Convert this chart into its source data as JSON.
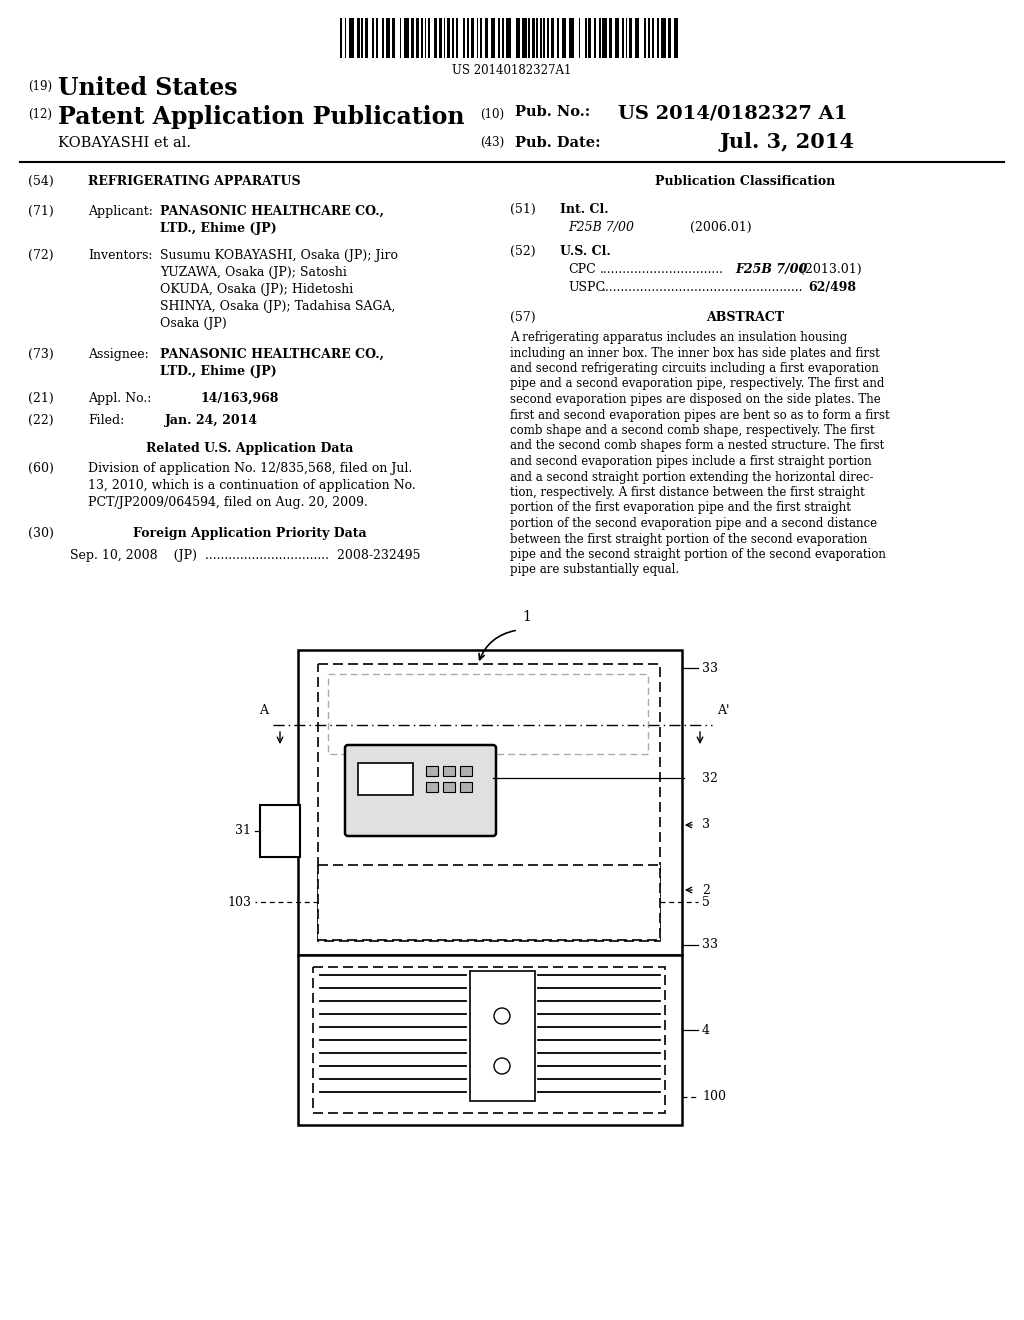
{
  "background_color": "#ffffff",
  "barcode_text": "US 20140182327A1",
  "header": {
    "number_19": "(19)",
    "united_states": "United States",
    "number_12": "(12)",
    "patent_app_pub": "Patent Application Publication",
    "kobayashi": "KOBAYASHI et al.",
    "number_10": "(10)",
    "pub_no_label": "Pub. No.:",
    "pub_no_value": "US 2014/0182327 A1",
    "number_43": "(43)",
    "pub_date_label": "Pub. Date:",
    "pub_date_value": "Jul. 3, 2014"
  },
  "left_col": {
    "s54_num": "(54)",
    "s54_title": "REFRIGERATING APPARATUS",
    "s71_num": "(71)",
    "s71_label": "Applicant:",
    "s71_bold": "PANASONIC HEALTHCARE CO.,",
    "s71_bold2": "LTD., Ehime (JP)",
    "s72_num": "(72)",
    "s72_label": "Inventors:",
    "s72_lines": [
      "Susumu KOBAYASHI, Osaka (JP); Jiro",
      "YUZAWA, Osaka (JP); Satoshi",
      "OKUDA, Osaka (JP); Hidetoshi",
      "SHINYA, Osaka (JP); Tadahisa SAGA,",
      "Osaka (JP)"
    ],
    "s73_num": "(73)",
    "s73_label": "Assignee:",
    "s73_bold": "PANASONIC HEALTHCARE CO.,",
    "s73_bold2": "LTD., Ehime (JP)",
    "s21_num": "(21)",
    "s21_label": "Appl. No.:",
    "s21_value": "14/163,968",
    "s22_num": "(22)",
    "s22_label": "Filed:",
    "s22_value": "Jan. 24, 2014",
    "related_title": "Related U.S. Application Data",
    "s60_num": "(60)",
    "s60_lines": [
      "Division of application No. 12/835,568, filed on Jul.",
      "13, 2010, which is a continuation of application No.",
      "PCT/JP2009/064594, filed on Aug. 20, 2009."
    ],
    "s30_num": "(30)",
    "s30_title": "Foreign Application Priority Data",
    "s30_text": "Sep. 10, 2008    (JP)  ................................  2008-232495"
  },
  "right_col": {
    "pub_class_title": "Publication Classification",
    "s51_num": "(51)",
    "s51_label": "Int. Cl.",
    "s51_class": "F25B 7/00",
    "s51_year": "(2006.01)",
    "s52_num": "(52)",
    "s52_label": "U.S. Cl.",
    "cpc_label": "CPC",
    "cpc_dots": "................................",
    "cpc_value": "F25B 7/00",
    "cpc_year": "(2013.01)",
    "uspc_label": "USPC",
    "uspc_dots": "....................................................",
    "uspc_value": "62/498",
    "s57_num": "(57)",
    "abstract_title": "ABSTRACT",
    "abstract_lines": [
      "A refrigerating apparatus includes an insulation housing",
      "including an inner box. The inner box has side plates and first",
      "and second refrigerating circuits including a first evaporation",
      "pipe and a second evaporation pipe, respectively. The first and",
      "second evaporation pipes are disposed on the side plates. The",
      "first and second evaporation pipes are bent so as to form a first",
      "comb shape and a second comb shape, respectively. The first",
      "and the second comb shapes form a nested structure. The first",
      "and second evaporation pipes include a first straight portion",
      "and a second straight portion extending the horizontal direc-",
      "tion, respectively. A first distance between the first straight",
      "portion of the first evaporation pipe and the first straight",
      "portion of the second evaporation pipe and a second distance",
      "between the first straight portion of the second evaporation",
      "pipe and the second straight portion of the second evaporation",
      "pipe are substantially equal."
    ]
  }
}
